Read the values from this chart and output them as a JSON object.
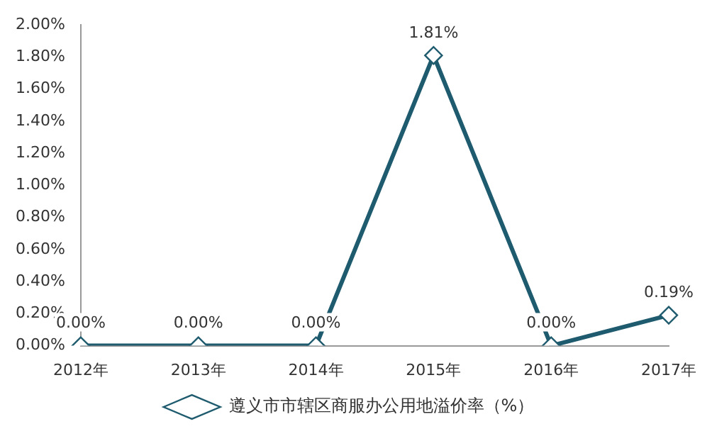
{
  "chart_data": {
    "type": "line",
    "categories": [
      "2012年",
      "2013年",
      "2014年",
      "2015年",
      "2016年",
      "2017年"
    ],
    "series": [
      {
        "name": "遵义市市辖区商服办公用地溢价率（%）",
        "color": "#1f5b6e",
        "values": [
          0,
          0,
          0,
          1.81,
          0,
          0.19
        ],
        "value_labels": [
          "0.00%",
          "0.00%",
          "0.00%",
          "1.81%",
          "0.00%",
          "0.19%"
        ]
      }
    ],
    "ylim": [
      0,
      2
    ],
    "yticks": [
      {
        "value": 0,
        "label": "0.00%"
      },
      {
        "value": 0.2,
        "label": "0.20%"
      },
      {
        "value": 0.4,
        "label": "0.40%"
      },
      {
        "value": 0.6,
        "label": "0.60%"
      },
      {
        "value": 0.8,
        "label": "0.80%"
      },
      {
        "value": 1,
        "label": "1.00%"
      },
      {
        "value": 1.2,
        "label": "1.20%"
      },
      {
        "value": 1.4,
        "label": "1.40%"
      },
      {
        "value": 1.6,
        "label": "1.60%"
      },
      {
        "value": 1.8,
        "label": "1.80%"
      },
      {
        "value": 2,
        "label": "2.00%"
      }
    ],
    "grid": false,
    "legend": "bottom",
    "marker": "diamond",
    "line_style": "solid"
  }
}
